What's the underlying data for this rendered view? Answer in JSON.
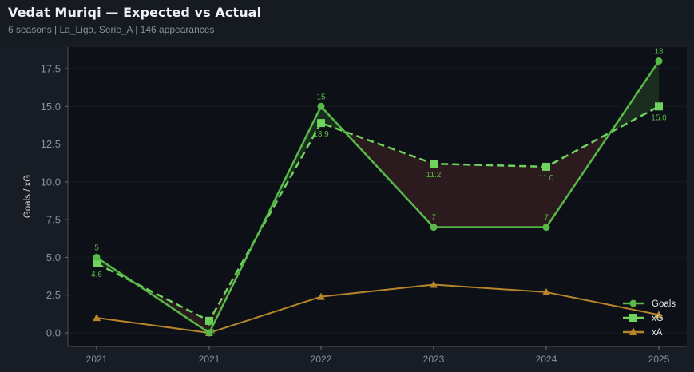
{
  "header": {
    "title": "Vedat Muriqi — Expected vs Actual",
    "subtitle": "6 seasons | La_Liga, Serie_A | 146 appearances"
  },
  "colors": {
    "goals": "#57b947",
    "xg": "#6fd35e",
    "xa": "#b8862a",
    "underperform_fill": "#2e1c1f",
    "overperform_fill": "#1c2f1f",
    "plot_bg": "#0d1017",
    "page_bg": "#181c24"
  },
  "chart_data": {
    "type": "line",
    "title": "Vedat Muriqi — Expected vs Actual",
    "subtitle": "6 seasons | La_Liga, Serie_A | 146 appearances",
    "xlabel": "",
    "ylabel": "Goals / xG",
    "categories": [
      "2021",
      "2021",
      "2022",
      "2023",
      "2024",
      "2025"
    ],
    "ylim": [
      -0.7,
      18.8
    ],
    "yticks": [
      "0.0",
      "2.5",
      "5.0",
      "7.5",
      "10.0",
      "12.5",
      "15.0",
      "17.5"
    ],
    "grid": true,
    "legend_position": "lower right",
    "series": [
      {
        "name": "Goals",
        "marker": "circle",
        "style": "solid",
        "values": [
          5,
          0,
          15,
          7,
          7,
          18
        ],
        "labels": [
          "5",
          "0",
          "15",
          "7",
          "7",
          "18"
        ]
      },
      {
        "name": "xG",
        "marker": "square",
        "style": "dashed",
        "values": [
          4.6,
          0.8,
          13.9,
          11.2,
          11.0,
          15.0
        ],
        "labels": [
          "4.6",
          "0.8",
          "13.9",
          "11.2",
          "11.0",
          "15.0"
        ]
      },
      {
        "name": "xA",
        "marker": "triangle",
        "style": "solid",
        "values": [
          1.0,
          0.0,
          2.4,
          3.2,
          2.7,
          1.2
        ]
      }
    ]
  }
}
